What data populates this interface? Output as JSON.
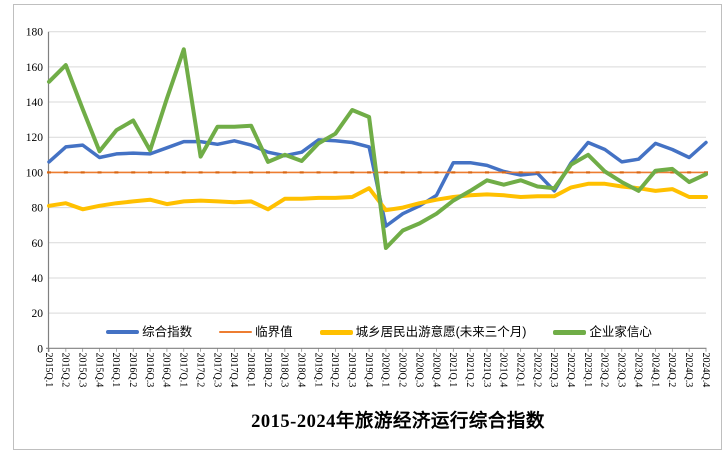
{
  "title": {
    "text": "2015-2024年旅游经济运行综合指数"
  },
  "legend": {
    "items": [
      {
        "label": "综合指数",
        "color": "#4472C4",
        "thick": 4
      },
      {
        "label": "临界值",
        "color": "#ED7D31",
        "thick": 2
      },
      {
        "label": "城乡居民出游意愿(未来三个月)",
        "color": "#FFC000",
        "thick": 5
      },
      {
        "label": "企业家信心",
        "color": "#70AD47",
        "thick": 5
      }
    ]
  },
  "colors": {
    "grid": "#D9D9D9",
    "axis": "#808080",
    "border": "#BFBFBF",
    "text": "#000000",
    "critical_marker": "#D86613"
  },
  "chart_data": {
    "type": "line",
    "title": "2015-2024年旅游经济运行综合指数",
    "xlabel": "",
    "ylabel": "",
    "ylim": [
      0,
      180
    ],
    "y_ticks": [
      0,
      20,
      40,
      60,
      80,
      100,
      120,
      140,
      160,
      180
    ],
    "grid": true,
    "legend_position": "bottom",
    "x_categories": [
      "2015Q.1",
      "2015Q.2",
      "2015Q.3",
      "2015Q.4",
      "2016Q.1",
      "2016Q.2",
      "2016Q.3",
      "2016Q.4",
      "2017Q.1",
      "2017Q.2",
      "2017Q.3",
      "2017Q.4",
      "2018Q.1",
      "2018Q.2",
      "2018Q.3",
      "2018Q.4",
      "2019Q.1",
      "2019Q.2",
      "2019Q.3",
      "2019Q.4",
      "2020Q.1",
      "2020Q.2",
      "2020Q.3",
      "2020Q.4",
      "2021Q.1",
      "2021Q.2",
      "2021Q.3",
      "2021Q.4",
      "2022Q.1",
      "2022Q.2",
      "2022Q.3",
      "2022Q.4",
      "2023Q.1",
      "2023Q.2",
      "2023Q.3",
      "2023Q.4",
      "2024Q.1",
      "2024Q.2",
      "2024Q.3",
      "2024Q.4"
    ],
    "series": [
      {
        "name": "综合指数",
        "color": "#4472C4",
        "width": 3.5,
        "values": [
          106,
          114.5,
          115.5,
          108.5,
          110.5,
          111,
          110.5,
          114,
          117.5,
          117.5,
          116,
          118,
          115.5,
          111.5,
          109.5,
          111.5,
          118.5,
          118,
          117,
          114.5,
          69.5,
          76.5,
          81,
          87,
          105.5,
          105.5,
          104,
          100.5,
          98.5,
          99.5,
          89.5,
          105.5,
          117,
          113,
          106,
          107.5,
          116.5,
          113,
          108.5,
          117
        ]
      },
      {
        "name": "临界值",
        "color": "#ED7D31",
        "width": 1.6,
        "values": [
          100,
          100,
          100,
          100,
          100,
          100,
          100,
          100,
          100,
          100,
          100,
          100,
          100,
          100,
          100,
          100,
          100,
          100,
          100,
          100,
          100,
          100,
          100,
          100,
          100,
          100,
          100,
          100,
          100,
          100,
          100,
          100,
          100,
          100,
          100,
          100,
          100,
          100,
          100,
          100
        ]
      },
      {
        "name": "城乡居民出游意愿(未来三个月)",
        "color": "#FFC000",
        "width": 4,
        "values": [
          81,
          82.5,
          79,
          81,
          82.5,
          83.5,
          84.5,
          82,
          83.5,
          84,
          83.5,
          83,
          83.5,
          79,
          85,
          85,
          85.5,
          85.5,
          86,
          91,
          78.5,
          80,
          82.5,
          84.5,
          86,
          87,
          87.5,
          87,
          86,
          86.5,
          86.5,
          91.5,
          93.5,
          93.5,
          92,
          91,
          89.5,
          90.5,
          86,
          86
        ]
      },
      {
        "name": "企业家信心",
        "color": "#70AD47",
        "width": 4,
        "values": [
          151.5,
          161,
          136,
          112,
          124,
          129.5,
          112.5,
          142,
          170,
          109,
          126,
          126,
          126.5,
          106,
          110,
          106.5,
          116.5,
          122,
          135.5,
          131.5,
          57,
          67,
          71,
          76.5,
          84,
          89.5,
          95.5,
          93,
          95.5,
          92,
          91,
          104.5,
          110,
          100.5,
          94.5,
          89.5,
          101,
          102,
          94.5,
          99
        ]
      }
    ]
  }
}
